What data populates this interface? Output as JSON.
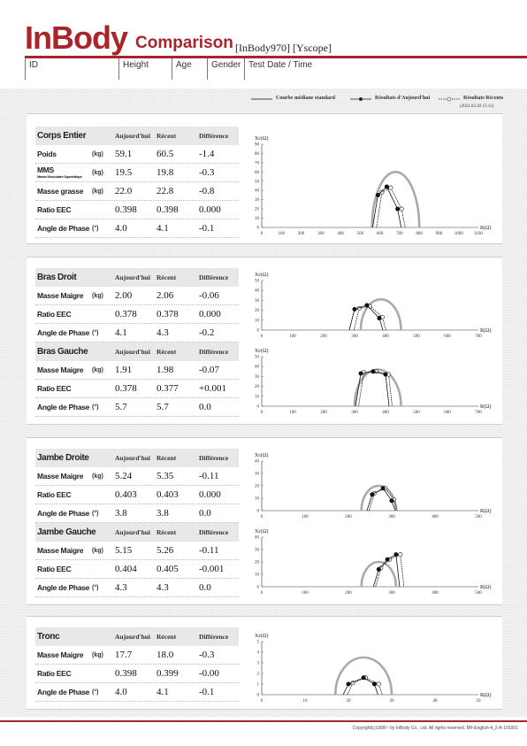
{
  "header": {
    "logo": "InBody",
    "title": "Comparison",
    "model": "[InBody970] [Yscope]",
    "columns": [
      "ID",
      "Height",
      "Age",
      "Gender",
      "Test Date / Time"
    ]
  },
  "legend": {
    "median": "Courbe médiane standard",
    "today": "Résultats d'Aujourd'hui",
    "recent": "Résultats Récents",
    "date": "(2021.03.20 15:12)"
  },
  "col_headers": {
    "today": "Aujourd'hui",
    "recent": "Récent",
    "diff": "Différence"
  },
  "sections": [
    {
      "title": "Corps Entier",
      "rows": [
        {
          "label": "Poids",
          "unit": "(kg)",
          "today": "59.1",
          "recent": "60.5",
          "diff": "-1.4"
        },
        {
          "label": "MMS",
          "sub": "Masse Musculaire Squelettique",
          "unit": "(kg)",
          "today": "19.5",
          "recent": "19.8",
          "diff": "-0.3"
        },
        {
          "label": "Masse grasse",
          "unit": "(kg)",
          "today": "22.0",
          "recent": "22.8",
          "diff": "-0.8"
        },
        {
          "label": "Ratio EEC",
          "unit": "",
          "today": "0.398",
          "recent": "0.398",
          "diff": "0.000"
        },
        {
          "label": "Angle de Phase",
          "unit": "(°)",
          "today": "4.0",
          "recent": "4.1",
          "diff": "-0.1"
        }
      ]
    },
    {
      "title": "Bras Droit",
      "rows": [
        {
          "label": "Masse Maigre",
          "unit": "(kg)",
          "today": "2.00",
          "recent": "2.06",
          "diff": "-0.06"
        },
        {
          "label": "Ratio EEC",
          "unit": "",
          "today": "0.378",
          "recent": "0.378",
          "diff": "0.000"
        },
        {
          "label": "Angle de Phase",
          "unit": "(°)",
          "today": "4.1",
          "recent": "4.3",
          "diff": "-0.2"
        }
      ]
    },
    {
      "title": "Bras Gauche",
      "rows": [
        {
          "label": "Masse Maigre",
          "unit": "(kg)",
          "today": "1.91",
          "recent": "1.98",
          "diff": "-0.07"
        },
        {
          "label": "Ratio EEC",
          "unit": "",
          "today": "0.378",
          "recent": "0.377",
          "diff": "+0.001"
        },
        {
          "label": "Angle de Phase",
          "unit": "(°)",
          "today": "5.7",
          "recent": "5.7",
          "diff": "0.0"
        }
      ]
    },
    {
      "title": "Jambe Droite",
      "rows": [
        {
          "label": "Masse Maigre",
          "unit": "(kg)",
          "today": "5.24",
          "recent": "5.35",
          "diff": "-0.11"
        },
        {
          "label": "Ratio EEC",
          "unit": "",
          "today": "0.403",
          "recent": "0.403",
          "diff": "0.000"
        },
        {
          "label": "Angle de Phase",
          "unit": "(°)",
          "today": "3.8",
          "recent": "3.8",
          "diff": "0.0"
        }
      ]
    },
    {
      "title": "Jambe Gauche",
      "rows": [
        {
          "label": "Masse Maigre",
          "unit": "(kg)",
          "today": "5.15",
          "recent": "5.26",
          "diff": "-0.11"
        },
        {
          "label": "Ratio EEC",
          "unit": "",
          "today": "0.404",
          "recent": "0.405",
          "diff": "-0.001"
        },
        {
          "label": "Angle de Phase",
          "unit": "(°)",
          "today": "4.3",
          "recent": "4.3",
          "diff": "0.0"
        }
      ]
    },
    {
      "title": "Tronc",
      "rows": [
        {
          "label": "Masse Maigre",
          "unit": "(kg)",
          "today": "17.7",
          "recent": "18.0",
          "diff": "-0.3"
        },
        {
          "label": "Ratio EEC",
          "unit": "",
          "today": "0.398",
          "recent": "0.399",
          "diff": "-0.00"
        },
        {
          "label": "Angle de Phase",
          "unit": "(°)",
          "today": "4.0",
          "recent": "4.1",
          "diff": "-0.1"
        }
      ]
    }
  ],
  "chart_data": [
    {
      "type": "line",
      "name": "corps-entier",
      "xlabel": "R(Ω)",
      "ylabel": "Xc(Ω)",
      "xlim": [
        0,
        1100
      ],
      "ylim": [
        0,
        90
      ],
      "xticks": [
        0,
        100,
        200,
        300,
        400,
        500,
        600,
        700,
        800,
        900,
        1000,
        1100
      ],
      "yticks": [
        0,
        10,
        20,
        30,
        40,
        50,
        60,
        70,
        80,
        90
      ],
      "median": {
        "r0": 560,
        "r1": 800,
        "peak": 60
      },
      "today": [
        [
          590,
          35
        ],
        [
          635,
          44
        ],
        [
          690,
          20
        ]
      ],
      "recent": [
        [
          610,
          38
        ],
        [
          655,
          43
        ],
        [
          710,
          20
        ]
      ]
    },
    {
      "type": "line",
      "name": "bras-droit",
      "xlabel": "R(Ω)",
      "ylabel": "Xc(Ω)",
      "xlim": [
        0,
        700
      ],
      "ylim": [
        0,
        50
      ],
      "xticks": [
        0,
        100,
        200,
        300,
        400,
        500,
        600,
        700
      ],
      "yticks": [
        0,
        10,
        20,
        30,
        40,
        50
      ],
      "median": {
        "r0": 320,
        "r1": 450,
        "peak": 31
      },
      "today": [
        [
          300,
          21
        ],
        [
          340,
          25
        ],
        [
          380,
          12
        ]
      ],
      "recent": [
        [
          315,
          22
        ],
        [
          350,
          24
        ],
        [
          390,
          13
        ]
      ]
    },
    {
      "type": "line",
      "name": "bras-gauche",
      "xlabel": "R(Ω)",
      "ylabel": "Xc(Ω)",
      "xlim": [
        0,
        700
      ],
      "ylim": [
        0,
        50
      ],
      "xticks": [
        0,
        100,
        200,
        300,
        400,
        500,
        600,
        700
      ],
      "yticks": [
        0,
        10,
        20,
        30,
        40,
        50
      ],
      "median": {
        "r0": 300,
        "r1": 450,
        "peak": 37
      },
      "today": [
        [
          320,
          33
        ],
        [
          360,
          35
        ],
        [
          400,
          32
        ]
      ],
      "recent": [
        [
          330,
          34
        ],
        [
          370,
          35
        ],
        [
          410,
          32
        ]
      ]
    },
    {
      "type": "line",
      "name": "jambe-droite",
      "xlabel": "R(Ω)",
      "ylabel": "Xc(Ω)",
      "xlim": [
        0,
        500
      ],
      "ylim": [
        0,
        40
      ],
      "xticks": [
        0,
        100,
        200,
        300,
        400,
        500
      ],
      "yticks": [
        0,
        10,
        20,
        30,
        40
      ],
      "median": {
        "r0": 230,
        "r1": 310,
        "peak": 20
      },
      "today": [
        [
          255,
          13
        ],
        [
          280,
          18
        ],
        [
          300,
          8
        ]
      ],
      "recent": [
        [
          260,
          14
        ],
        [
          285,
          18
        ],
        [
          305,
          9
        ]
      ]
    },
    {
      "type": "line",
      "name": "jambe-gauche",
      "xlabel": "R(Ω)",
      "ylabel": "Xc(Ω)",
      "xlim": [
        0,
        500
      ],
      "ylim": [
        0,
        40
      ],
      "xticks": [
        0,
        100,
        200,
        300,
        400,
        500
      ],
      "yticks": [
        0,
        10,
        20,
        30,
        40
      ],
      "median": {
        "r0": 230,
        "r1": 310,
        "peak": 20
      },
      "today": [
        [
          270,
          14
        ],
        [
          290,
          22
        ],
        [
          310,
          26
        ]
      ],
      "recent": [
        [
          275,
          15
        ],
        [
          295,
          22
        ],
        [
          320,
          26
        ]
      ]
    },
    {
      "type": "line",
      "name": "tronc",
      "xlabel": "R(Ω)",
      "ylabel": "Xc(Ω)",
      "xlim": [
        0,
        50
      ],
      "ylim": [
        0,
        5
      ],
      "xticks": [
        0,
        10,
        20,
        30,
        40,
        50
      ],
      "yticks": [
        0,
        1,
        2,
        3,
        4,
        5
      ],
      "median": {
        "r0": 17,
        "r1": 30,
        "peak": 3.5
      },
      "today": [
        [
          20,
          1.0
        ],
        [
          23.5,
          1.6
        ],
        [
          26,
          1.0
        ]
      ],
      "recent": [
        [
          21,
          1.1
        ],
        [
          24,
          1.6
        ],
        [
          27,
          1.0
        ]
      ]
    }
  ],
  "footer": {
    "copyright": "Copyright(c)1996~ by InBody Co., Ltd. All rights reserved. BR-English-4_2-A-191001"
  }
}
